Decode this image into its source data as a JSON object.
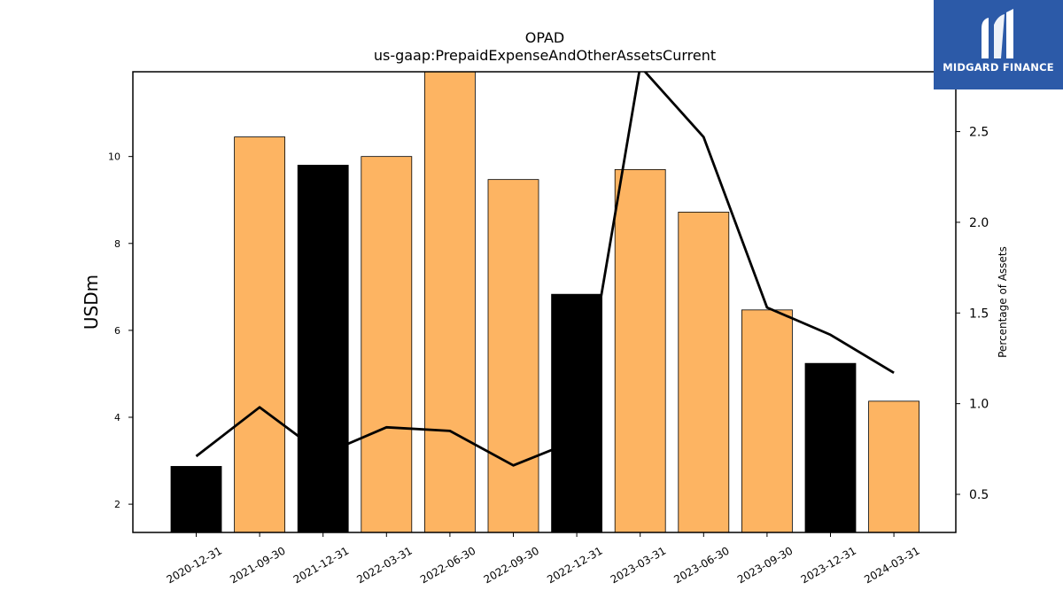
{
  "logo": {
    "text": "MIDGARD FINANCE"
  },
  "chart_data": {
    "type": "bar",
    "title": "OPAD",
    "subtitle": "us-gaap:PrepaidExpenseAndOtherAssetsCurrent",
    "ylabel": "USDm",
    "y2label": "Percentage of Assets",
    "ylim": [
      1.35,
      11.95
    ],
    "y2lim": [
      0.29,
      2.83
    ],
    "yticks": [
      2,
      4,
      6,
      8,
      10
    ],
    "y2ticks": [
      0.5,
      1.0,
      1.5,
      2.0,
      2.5
    ],
    "categories": [
      "2020-12-31",
      "2021-09-30",
      "2021-12-31",
      "2022-03-31",
      "2022-06-30",
      "2022-09-30",
      "2022-12-31",
      "2023-03-31",
      "2023-06-30",
      "2023-09-30",
      "2023-12-31",
      "2024-03-31"
    ],
    "series": [
      {
        "type": "bar",
        "axis": "left",
        "values": [
          2.87,
          10.45,
          9.8,
          10.0,
          11.95,
          9.47,
          6.83,
          9.7,
          8.72,
          6.47,
          5.24,
          4.37
        ],
        "colors": [
          "#000000",
          "#fdb462",
          "#000000",
          "#fdb462",
          "#fdb462",
          "#fdb462",
          "#000000",
          "#fdb462",
          "#fdb462",
          "#fdb462",
          "#000000",
          "#fdb462"
        ]
      },
      {
        "type": "line",
        "axis": "right",
        "color": "#000000",
        "values": [
          0.71,
          0.98,
          0.72,
          0.87,
          0.85,
          0.66,
          0.8,
          2.86,
          2.47,
          1.53,
          1.38,
          1.17
        ]
      }
    ],
    "grid": false
  }
}
